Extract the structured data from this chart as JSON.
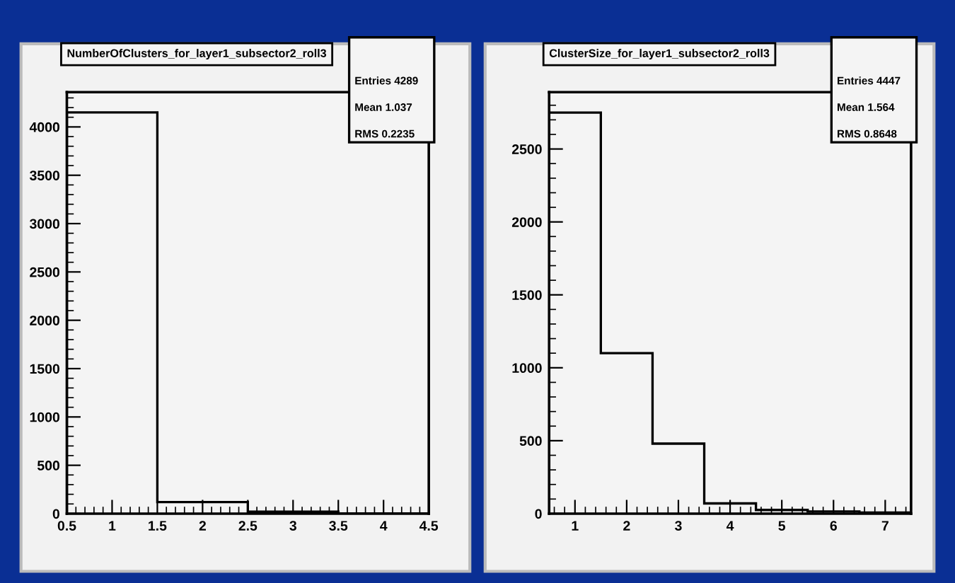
{
  "chart_data": [
    {
      "type": "histogram",
      "title": "NumberOfClusters_for_layer1_subsector2_roll3",
      "bins": [
        0.5,
        1.5,
        2.5,
        3.5,
        4.5
      ],
      "values": [
        4150,
        120,
        20,
        0
      ],
      "color": "#000000",
      "xlim": [
        0.5,
        4.5
      ],
      "xticks": [
        {
          "value": 0.5,
          "label": "0.5"
        },
        1,
        {
          "value": 1.5,
          "label": "1.5"
        },
        2,
        {
          "value": 2.5,
          "label": "2.5"
        },
        3,
        {
          "value": 3.5,
          "label": "3.5"
        },
        4,
        {
          "value": 4.5,
          "label": "4.5"
        }
      ],
      "ylim": [
        0,
        4360
      ],
      "yticks": [
        0,
        500,
        1000,
        1500,
        2000,
        2500,
        3000,
        3500,
        4000
      ],
      "grid": false,
      "annotations": [
        "Entries 4289",
        "Mean 1.037",
        "RMS 0.2235"
      ]
    },
    {
      "type": "histogram",
      "title": "ClusterSize_for_layer1_subsector2_roll3",
      "bins": [
        0.5,
        1.5,
        2.5,
        3.5,
        4.5,
        5.5,
        6.5,
        7.5
      ],
      "values": [
        2750,
        1100,
        480,
        70,
        25,
        15,
        7
      ],
      "color": "#000000",
      "xlim": [
        0.5,
        7.5
      ],
      "xticks": [
        1,
        2,
        3,
        4,
        5,
        6,
        7
      ],
      "ylim": [
        0,
        2890
      ],
      "yticks": [
        0,
        500,
        1000,
        1500,
        2000,
        2500
      ],
      "grid": false,
      "annotations": [
        "Entries 4447",
        "Mean 1.564",
        "RMS 0.8648"
      ]
    }
  ]
}
